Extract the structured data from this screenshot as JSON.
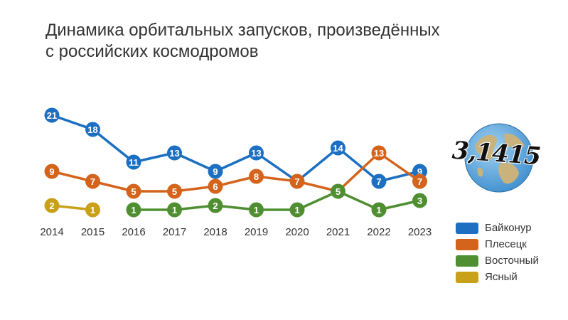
{
  "title": {
    "line1": "Динамика орбитальных запусков, произведённых",
    "line2": "с российских космодромов"
  },
  "logo_text": "3,1415",
  "chart_data": {
    "type": "line",
    "categories": [
      "2014",
      "2015",
      "2016",
      "2017",
      "2018",
      "2019",
      "2020",
      "2021",
      "2022",
      "2023"
    ],
    "series": [
      {
        "name": "Байконур",
        "color": "#1c6fc1",
        "values": [
          21,
          18,
          11,
          13,
          9,
          13,
          7,
          14,
          7,
          9
        ],
        "labels": [
          "21",
          "18",
          "11",
          "13",
          "9",
          "13",
          "",
          "14",
          "7",
          "9"
        ]
      },
      {
        "name": "Плесецк",
        "color": "#d4641c",
        "values": [
          9,
          7,
          5,
          5,
          6,
          8,
          7,
          5,
          13,
          7
        ],
        "labels": [
          "9",
          "7",
          "5",
          "5",
          "6",
          "8",
          "7",
          "",
          "13",
          "7"
        ]
      },
      {
        "name": "Восточный",
        "color": "#4f8f32",
        "values": [
          null,
          null,
          1,
          1,
          2,
          1,
          1,
          5,
          1,
          3
        ],
        "labels": [
          "",
          "",
          "1",
          "1",
          "2",
          "1",
          "1",
          "5",
          "1",
          "3"
        ]
      },
      {
        "name": "Ясный",
        "color": "#c9a118",
        "values": [
          2,
          1,
          null,
          null,
          null,
          null,
          null,
          null,
          null,
          null
        ],
        "labels": [
          "2",
          "1",
          "",
          "",
          "",
          "",
          "",
          "",
          "",
          ""
        ]
      }
    ],
    "grid": false,
    "legend": "bottom-right"
  }
}
